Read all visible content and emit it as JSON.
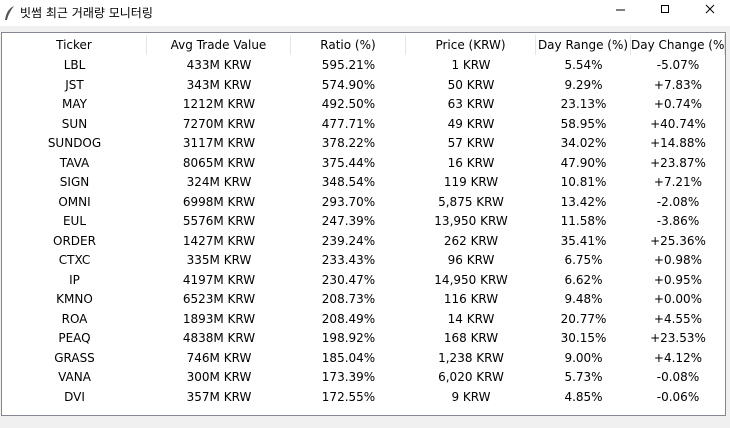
{
  "window": {
    "title": "빗썸 최근 거래량 모니터링"
  },
  "table": {
    "columns": [
      "Ticker",
      "Avg Trade Value",
      "Ratio (%)",
      "Price (KRW)",
      "Day Range (%)",
      "Day Change (%)"
    ],
    "rows": [
      [
        "LBL",
        "433M KRW",
        "595.21%",
        "1 KRW",
        "5.54%",
        "-5.07%"
      ],
      [
        "JST",
        "343M KRW",
        "574.90%",
        "50 KRW",
        "9.29%",
        "+7.83%"
      ],
      [
        "MAY",
        "1212M KRW",
        "492.50%",
        "63 KRW",
        "23.13%",
        "+0.74%"
      ],
      [
        "SUN",
        "7270M KRW",
        "477.71%",
        "49 KRW",
        "58.95%",
        "+40.74%"
      ],
      [
        "SUNDOG",
        "3117M KRW",
        "378.22%",
        "57 KRW",
        "34.02%",
        "+14.88%"
      ],
      [
        "TAVA",
        "8065M KRW",
        "375.44%",
        "16 KRW",
        "47.90%",
        "+23.87%"
      ],
      [
        "SIGN",
        "324M KRW",
        "348.54%",
        "119 KRW",
        "10.81%",
        "+7.21%"
      ],
      [
        "OMNI",
        "6998M KRW",
        "293.70%",
        "5,875 KRW",
        "13.42%",
        "-2.08%"
      ],
      [
        "EUL",
        "5576M KRW",
        "247.39%",
        "13,950 KRW",
        "11.58%",
        "-3.86%"
      ],
      [
        "ORDER",
        "1427M KRW",
        "239.24%",
        "262 KRW",
        "35.41%",
        "+25.36%"
      ],
      [
        "CTXC",
        "335M KRW",
        "233.43%",
        "96 KRW",
        "6.75%",
        "+0.98%"
      ],
      [
        "IP",
        "4197M KRW",
        "230.47%",
        "14,950 KRW",
        "6.62%",
        "+0.95%"
      ],
      [
        "KMNO",
        "6523M KRW",
        "208.73%",
        "116 KRW",
        "9.48%",
        "+0.00%"
      ],
      [
        "ROA",
        "1893M KRW",
        "208.49%",
        "14 KRW",
        "20.77%",
        "+4.55%"
      ],
      [
        "PEAQ",
        "4838M KRW",
        "198.92%",
        "168 KRW",
        "30.15%",
        "+23.53%"
      ],
      [
        "GRASS",
        "746M KRW",
        "185.04%",
        "1,238 KRW",
        "9.00%",
        "+4.12%"
      ],
      [
        "VANA",
        "300M KRW",
        "173.39%",
        "6,020 KRW",
        "5.73%",
        "-0.08%"
      ],
      [
        "DVI",
        "357M KRW",
        "172.55%",
        "9 KRW",
        "4.85%",
        "-0.06%"
      ]
    ]
  }
}
